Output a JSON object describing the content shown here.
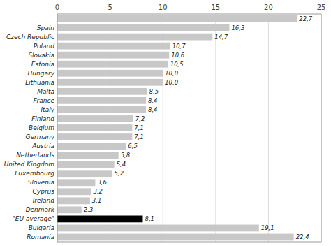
{
  "chart_data": {
    "type": "bar",
    "orientation": "horizontal",
    "categories": [
      null,
      "Spain",
      "Czech Republic",
      "Poland",
      "Slovakia",
      "Estonia",
      "Hungary",
      "Lithuania",
      "Malta",
      "France",
      "Italy",
      "Finland",
      "Belgium",
      "Germany",
      "Austria",
      "Netherlands",
      "United Kingdom",
      "Luxembourg",
      "Slovenia",
      "Cyprus",
      "Ireland",
      "Denmark",
      "\"EU average\"",
      "Bulgaria",
      "Romania"
    ],
    "values": [
      22.7,
      16.3,
      14.7,
      10.7,
      10.6,
      10.5,
      10.0,
      10.0,
      8.5,
      8.4,
      8.4,
      7.2,
      7.1,
      7.1,
      6.5,
      5.8,
      5.4,
      5.2,
      3.6,
      3.2,
      3.1,
      2.3,
      8.1,
      19.1,
      22.4
    ],
    "value_labels": [
      "22,7",
      "16,3",
      "14,7",
      "10,7",
      "10,6",
      "10,5",
      "10,0",
      "10,0",
      "8,5",
      "8,4",
      "8,4",
      "7,2",
      "7,1",
      "7,1",
      "6,5",
      "5,8",
      "5,4",
      "5,2",
      "3,6",
      "3,2",
      "3,1",
      "2,3",
      "8,1",
      "19,1",
      "22,4"
    ],
    "data_labels": true,
    "colors": [
      "#c8c8c8",
      "#c8c8c8",
      "#c8c8c8",
      "#c8c8c8",
      "#c8c8c8",
      "#c8c8c8",
      "#c8c8c8",
      "#c8c8c8",
      "#c8c8c8",
      "#c8c8c8",
      "#c8c8c8",
      "#c8c8c8",
      "#c8c8c8",
      "#c8c8c8",
      "#c8c8c8",
      "#c8c8c8",
      "#c8c8c8",
      "#c8c8c8",
      "#c8c8c8",
      "#c8c8c8",
      "#c8c8c8",
      "#c8c8c8",
      "#000000",
      "#c8c8c8",
      "#c8c8c8"
    ],
    "xlim": [
      0,
      25
    ],
    "xticks": [
      0,
      5,
      10,
      15,
      20,
      25
    ],
    "grid": true
  }
}
